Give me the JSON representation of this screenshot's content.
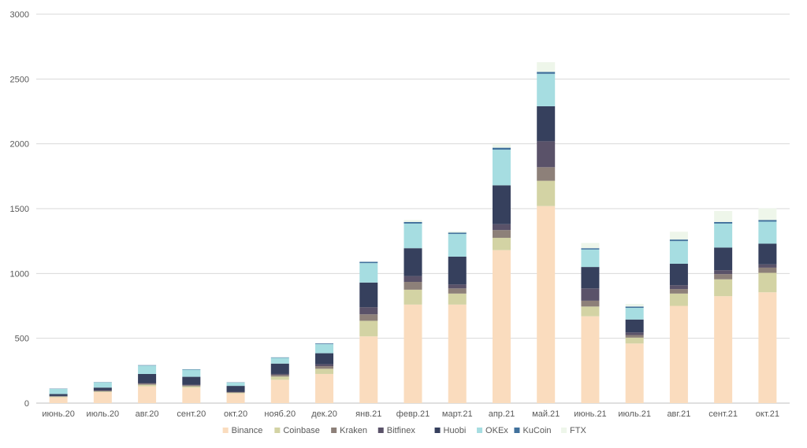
{
  "chart_data": {
    "type": "bar",
    "stacked": true,
    "title": "",
    "xlabel": "",
    "ylabel": "",
    "ylim": [
      0,
      3000
    ],
    "yticks": [
      0,
      500,
      1000,
      1500,
      2000,
      2500,
      3000
    ],
    "grid": true,
    "legend_position": "bottom",
    "categories": [
      "июнь.20",
      "июль.20",
      "авг.20",
      "сент.20",
      "окт.20",
      "нояб.20",
      "дек.20",
      "янв.21",
      "февр.21",
      "март.21",
      "апр.21",
      "май.21",
      "июнь.21",
      "июль.21",
      "авг.21",
      "сент.21",
      "окт.21"
    ],
    "series": [
      {
        "name": "Binance",
        "color": "#FADCBE",
        "values": [
          45,
          85,
          130,
          120,
          75,
          180,
          225,
          515,
          760,
          760,
          1180,
          1520,
          670,
          460,
          750,
          825,
          855
        ]
      },
      {
        "name": "Coinbase",
        "color": "#D3D3A4",
        "values": [
          5,
          5,
          12,
          10,
          5,
          25,
          40,
          120,
          115,
          85,
          95,
          195,
          75,
          45,
          95,
          130,
          150
        ]
      },
      {
        "name": "Kraken",
        "color": "#8D8079",
        "values": [
          3,
          5,
          8,
          8,
          5,
          12,
          20,
          50,
          60,
          40,
          60,
          105,
          45,
          20,
          35,
          40,
          40
        ]
      },
      {
        "name": "Bitfinex",
        "color": "#5A5269",
        "values": [
          2,
          5,
          5,
          5,
          3,
          8,
          15,
          55,
          45,
          30,
          45,
          200,
          95,
          20,
          30,
          30,
          25
        ]
      },
      {
        "name": "Huobi",
        "color": "#36405D",
        "values": [
          15,
          20,
          70,
          60,
          45,
          80,
          85,
          190,
          215,
          215,
          300,
          270,
          165,
          100,
          165,
          175,
          160
        ]
      },
      {
        "name": "OKEx",
        "color": "#A6DDE1",
        "values": [
          40,
          40,
          65,
          55,
          25,
          45,
          70,
          150,
          190,
          175,
          275,
          250,
          135,
          90,
          175,
          185,
          170
        ]
      },
      {
        "name": "KuCoin",
        "color": "#41719C",
        "values": [
          2,
          2,
          3,
          3,
          2,
          3,
          5,
          10,
          12,
          10,
          15,
          15,
          10,
          10,
          12,
          12,
          12
        ]
      },
      {
        "name": "FTX",
        "color": "#EEF6EA",
        "values": [
          0,
          0,
          0,
          0,
          0,
          0,
          0,
          0,
          15,
          10,
          25,
          75,
          40,
          20,
          60,
          85,
          90
        ]
      }
    ]
  }
}
